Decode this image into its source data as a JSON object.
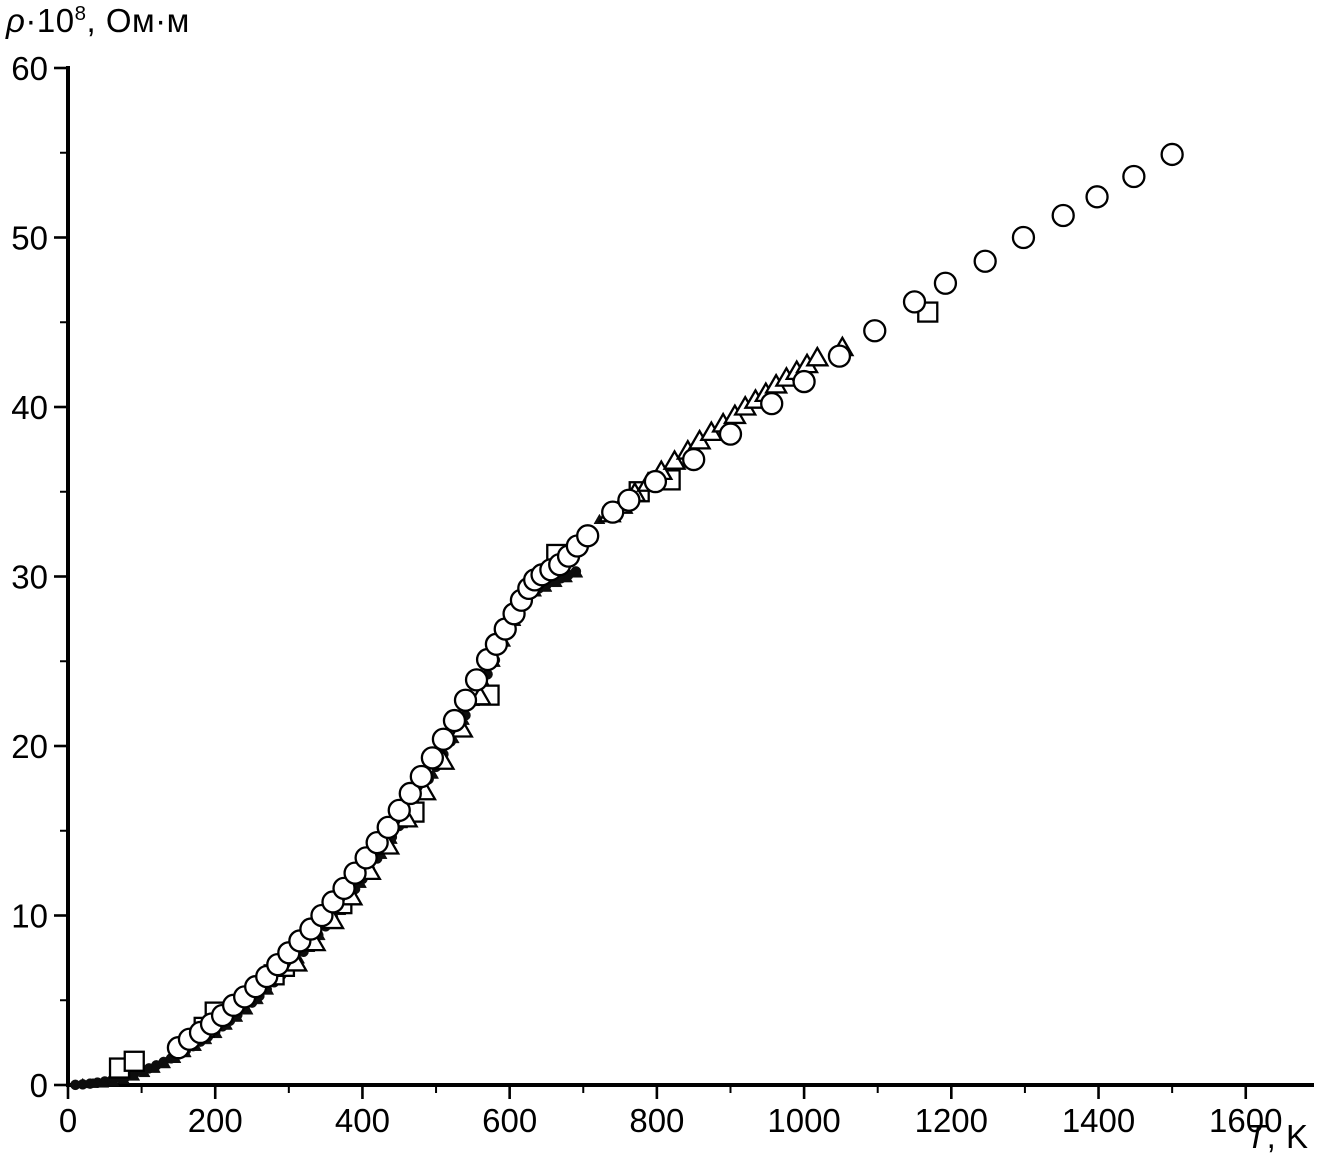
{
  "figure": {
    "background": "#ffffff"
  },
  "chart_data": {
    "type": "scatter",
    "title": "",
    "xlabel": {
      "variable": "T",
      "suffix": ", K"
    },
    "ylabel": {
      "rho": "ρ",
      "base": "·10",
      "superscript": "8",
      "suffix": ", Ом·м"
    },
    "xlim": [
      0,
      1690
    ],
    "ylim": [
      0,
      60
    ],
    "x_ticks": [
      0,
      200,
      400,
      600,
      800,
      1000,
      1200,
      1400,
      1600
    ],
    "y_ticks": [
      0,
      10,
      20,
      30,
      40,
      50,
      60
    ],
    "x_minor_step": 100,
    "y_minor_step": 5,
    "grid": false,
    "legend": "none",
    "axis_color": "#000000",
    "series": [
      {
        "name": "dense-filled-circles",
        "marker": "circle",
        "fill": "#0d0d0d",
        "stroke": "#0d0d0d",
        "stroke_width": 0.5,
        "size": 10,
        "points": [
          [
            10,
            0.01
          ],
          [
            20,
            0.04
          ],
          [
            30,
            0.08
          ],
          [
            40,
            0.14
          ],
          [
            50,
            0.21
          ],
          [
            60,
            0.3
          ],
          [
            70,
            0.41
          ],
          [
            80,
            0.53
          ],
          [
            90,
            0.66
          ],
          [
            100,
            0.81
          ],
          [
            110,
            0.98
          ],
          [
            120,
            1.16
          ],
          [
            130,
            1.36
          ],
          [
            140,
            1.57
          ],
          [
            150,
            1.8
          ],
          [
            160,
            2.04
          ],
          [
            170,
            2.29
          ],
          [
            180,
            2.56
          ],
          [
            190,
            2.84
          ],
          [
            200,
            3.14
          ],
          [
            210,
            3.46
          ],
          [
            220,
            3.79
          ],
          [
            230,
            4.13
          ],
          [
            240,
            4.49
          ],
          [
            250,
            4.86
          ],
          [
            260,
            5.25
          ],
          [
            270,
            5.65
          ],
          [
            280,
            6.06
          ],
          [
            290,
            6.49
          ],
          [
            300,
            6.93
          ],
          [
            310,
            7.39
          ],
          [
            320,
            7.86
          ],
          [
            330,
            8.35
          ],
          [
            340,
            8.85
          ],
          [
            350,
            9.36
          ],
          [
            360,
            9.89
          ],
          [
            370,
            10.43
          ],
          [
            380,
            10.99
          ],
          [
            390,
            11.56
          ],
          [
            400,
            12.15
          ],
          [
            410,
            12.75
          ],
          [
            420,
            13.36
          ],
          [
            430,
            13.99
          ],
          [
            440,
            14.63
          ],
          [
            450,
            15.28
          ],
          [
            460,
            15.95
          ],
          [
            470,
            16.63
          ],
          [
            480,
            17.33
          ],
          [
            490,
            18.04
          ],
          [
            500,
            18.77
          ],
          [
            510,
            19.51
          ],
          [
            520,
            20.26
          ],
          [
            530,
            21.03
          ],
          [
            540,
            21.81
          ],
          [
            550,
            22.6
          ],
          [
            560,
            23.41
          ],
          [
            570,
            24.23
          ],
          [
            580,
            25.07
          ],
          [
            590,
            25.92
          ],
          [
            600,
            26.78
          ],
          [
            610,
            27.66
          ],
          [
            620,
            28.55
          ],
          [
            630,
            29.1
          ],
          [
            640,
            29.3
          ],
          [
            650,
            29.5
          ],
          [
            660,
            29.7
          ],
          [
            670,
            29.9
          ],
          [
            680,
            30.1
          ],
          [
            690,
            30.3
          ]
        ]
      },
      {
        "name": "dense-filled-triangles",
        "marker": "triangle",
        "fill": "#0d0d0d",
        "stroke": "#0d0d0d",
        "stroke_width": 0.5,
        "size": 11,
        "points": [
          [
            20,
            0.02
          ],
          [
            34,
            0.03
          ],
          [
            48,
            0.05
          ],
          [
            62,
            0.12
          ],
          [
            76,
            0.27
          ],
          [
            90,
            0.46
          ],
          [
            104,
            0.67
          ],
          [
            118,
            0.92
          ],
          [
            132,
            1.19
          ],
          [
            146,
            1.5
          ],
          [
            160,
            1.84
          ],
          [
            174,
            2.21
          ],
          [
            188,
            2.61
          ],
          [
            202,
            2.97
          ],
          [
            216,
            3.46
          ],
          [
            230,
            3.93
          ],
          [
            244,
            4.36
          ],
          [
            258,
            4.97
          ],
          [
            272,
            5.53
          ],
          [
            286,
            6.12
          ],
          [
            300,
            6.73
          ],
          [
            314,
            7.37
          ],
          [
            328,
            8.05
          ],
          [
            342,
            8.75
          ],
          [
            356,
            9.48
          ],
          [
            370,
            10.23
          ],
          [
            384,
            11.01
          ],
          [
            398,
            11.83
          ],
          [
            412,
            12.67
          ],
          [
            426,
            13.54
          ],
          [
            440,
            14.43
          ],
          [
            454,
            15.35
          ],
          [
            468,
            16.29
          ],
          [
            482,
            17.27
          ],
          [
            496,
            18.27
          ],
          [
            510,
            19.31
          ],
          [
            524,
            20.37
          ],
          [
            538,
            21.45
          ],
          [
            552,
            22.56
          ],
          [
            566,
            23.7
          ],
          [
            580,
            24.87
          ],
          [
            594,
            26.06
          ],
          [
            608,
            27.28
          ],
          [
            622,
            28.44
          ],
          [
            636,
            29.02
          ],
          [
            650,
            29.3
          ],
          [
            664,
            29.58
          ],
          [
            678,
            29.86
          ],
          [
            692,
            30.14
          ],
          [
            722,
            33.3
          ],
          [
            744,
            34.0
          ],
          [
            1048,
            43.2
          ]
        ]
      },
      {
        "name": "open-squares",
        "marker": "square",
        "fill": "#ffffff",
        "stroke": "#000000",
        "stroke_width": 2.3,
        "size": 19,
        "points": [
          [
            70,
            1.0
          ],
          [
            90,
            1.4
          ],
          [
            185,
            3.4
          ],
          [
            200,
            4.3
          ],
          [
            280,
            6.5
          ],
          [
            294,
            7.0
          ],
          [
            372,
            10.7
          ],
          [
            470,
            16.1
          ],
          [
            572,
            23.0
          ],
          [
            664,
            31.3
          ],
          [
            776,
            35.0
          ],
          [
            818,
            35.7
          ],
          [
            1168,
            45.6
          ]
        ]
      },
      {
        "name": "open-triangles",
        "marker": "triangle",
        "fill": "#ffffff",
        "stroke": "#000000",
        "stroke_width": 2.3,
        "size": 20,
        "points": [
          [
            310,
            7.1
          ],
          [
            335,
            8.3
          ],
          [
            360,
            9.6
          ],
          [
            385,
            11.0
          ],
          [
            410,
            12.5
          ],
          [
            435,
            14.0
          ],
          [
            460,
            15.6
          ],
          [
            485,
            17.2
          ],
          [
            510,
            19.0
          ],
          [
            535,
            20.9
          ],
          [
            560,
            22.8
          ],
          [
            736,
            33.6
          ],
          [
            752,
            34.1
          ],
          [
            770,
            34.8
          ],
          [
            788,
            35.4
          ],
          [
            806,
            36.1
          ],
          [
            824,
            36.7
          ],
          [
            842,
            37.3
          ],
          [
            858,
            37.9
          ],
          [
            874,
            38.4
          ],
          [
            890,
            38.9
          ],
          [
            906,
            39.4
          ],
          [
            920,
            39.9
          ],
          [
            934,
            40.3
          ],
          [
            948,
            40.7
          ],
          [
            962,
            41.2
          ],
          [
            976,
            41.6
          ],
          [
            990,
            42.0
          ],
          [
            1004,
            42.4
          ],
          [
            1018,
            42.8
          ],
          [
            1052,
            43.4
          ]
        ]
      },
      {
        "name": "open-circles",
        "marker": "circle",
        "fill": "#ffffff",
        "stroke": "#000000",
        "stroke_width": 2.3,
        "size": 21,
        "points": [
          [
            150,
            2.2
          ],
          [
            165,
            2.7
          ],
          [
            180,
            3.1
          ],
          [
            195,
            3.6
          ],
          [
            210,
            4.1
          ],
          [
            225,
            4.7
          ],
          [
            240,
            5.2
          ],
          [
            255,
            5.8
          ],
          [
            270,
            6.4
          ],
          [
            285,
            7.1
          ],
          [
            300,
            7.8
          ],
          [
            315,
            8.5
          ],
          [
            330,
            9.2
          ],
          [
            345,
            10.0
          ],
          [
            360,
            10.8
          ],
          [
            375,
            11.6
          ],
          [
            390,
            12.5
          ],
          [
            405,
            13.4
          ],
          [
            420,
            14.3
          ],
          [
            435,
            15.2
          ],
          [
            450,
            16.2
          ],
          [
            465,
            17.2
          ],
          [
            480,
            18.2
          ],
          [
            495,
            19.3
          ],
          [
            510,
            20.4
          ],
          [
            525,
            21.5
          ],
          [
            540,
            22.7
          ],
          [
            555,
            23.9
          ],
          [
            570,
            25.1
          ],
          [
            582,
            26.0
          ],
          [
            594,
            26.9
          ],
          [
            606,
            27.8
          ],
          [
            616,
            28.6
          ],
          [
            626,
            29.3
          ],
          [
            634,
            29.8
          ],
          [
            644,
            30.1
          ],
          [
            656,
            30.4
          ],
          [
            668,
            30.7
          ],
          [
            680,
            31.2
          ],
          [
            692,
            31.8
          ],
          [
            706,
            32.4
          ],
          [
            740,
            33.8
          ],
          [
            762,
            34.5
          ],
          [
            798,
            35.6
          ],
          [
            850,
            36.9
          ],
          [
            900,
            38.4
          ],
          [
            956,
            40.2
          ],
          [
            1000,
            41.5
          ],
          [
            1048,
            43.0
          ],
          [
            1096,
            44.5
          ],
          [
            1150,
            46.2
          ],
          [
            1192,
            47.3
          ],
          [
            1246,
            48.6
          ],
          [
            1298,
            50.0
          ],
          [
            1352,
            51.3
          ],
          [
            1398,
            52.4
          ],
          [
            1448,
            53.6
          ],
          [
            1500,
            54.9
          ]
        ]
      }
    ]
  }
}
